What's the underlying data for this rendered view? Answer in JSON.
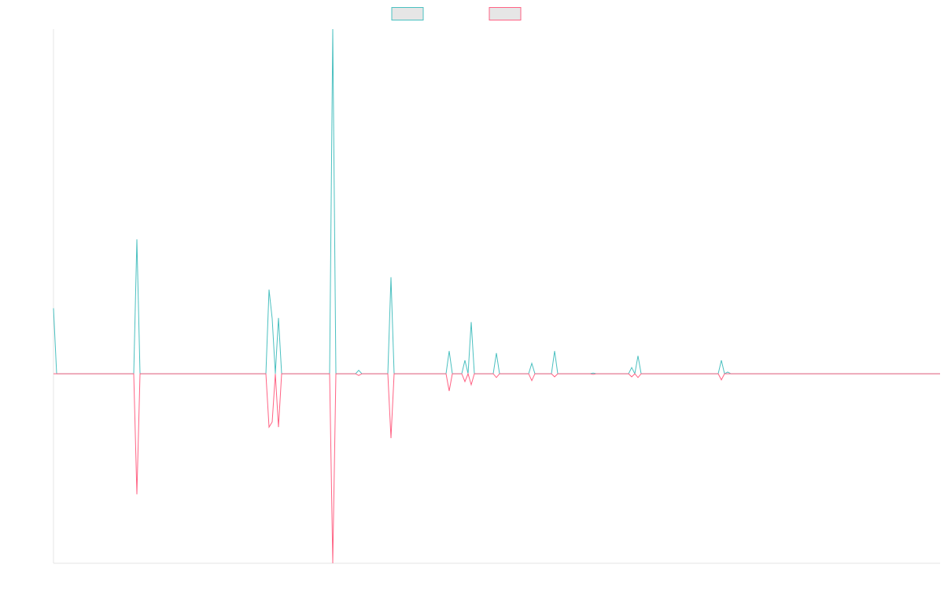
{
  "chart_data": {
    "type": "line",
    "x": [
      0,
      4,
      102,
      106,
      110,
      270,
      274,
      278,
      282,
      286,
      290,
      351,
      355,
      359,
      384,
      388,
      392,
      425,
      429,
      433,
      499,
      503,
      507,
      519,
      523,
      527,
      531,
      535,
      559,
      563,
      567,
      604,
      608,
      612,
      633,
      637,
      641,
      682,
      686,
      690,
      731,
      735,
      739,
      743,
      747,
      845,
      849,
      853,
      857,
      861,
      1127
    ],
    "series": [
      {
        "color": "#4bc0c0",
        "values": [
          0.19,
          0,
          0,
          0.39,
          0,
          0,
          0.244,
          0.16,
          0,
          0.162,
          0,
          0,
          1,
          0,
          0,
          0.01,
          0,
          0,
          0.28,
          0,
          0,
          0.066,
          0,
          0,
          0.039,
          0,
          0.15,
          0,
          0,
          0.06,
          0,
          0,
          0.03,
          0,
          0,
          0.066,
          0,
          0,
          0.002,
          0,
          0,
          0.018,
          0,
          0.052,
          0,
          0,
          0.039,
          0,
          0.005,
          0,
          0
        ]
      },
      {
        "color": "#ff6384",
        "values": [
          0,
          0,
          0,
          -0.35,
          0,
          0,
          -0.155,
          -0.14,
          0,
          -0.155,
          0,
          0,
          -0.55,
          0,
          0,
          -0.005,
          0,
          0,
          -0.187,
          0,
          0,
          -0.05,
          0,
          0,
          -0.023,
          0,
          -0.032,
          0,
          0,
          -0.011,
          0,
          0,
          -0.02,
          0,
          0,
          -0.009,
          0,
          0,
          -0.002,
          0,
          0,
          -0.009,
          0,
          -0.011,
          0,
          0,
          -0.018,
          0,
          0,
          0,
          0
        ]
      }
    ],
    "xlim": [
      0,
      1127
    ],
    "ylim": [
      -0.55,
      1
    ],
    "legend": "top"
  }
}
